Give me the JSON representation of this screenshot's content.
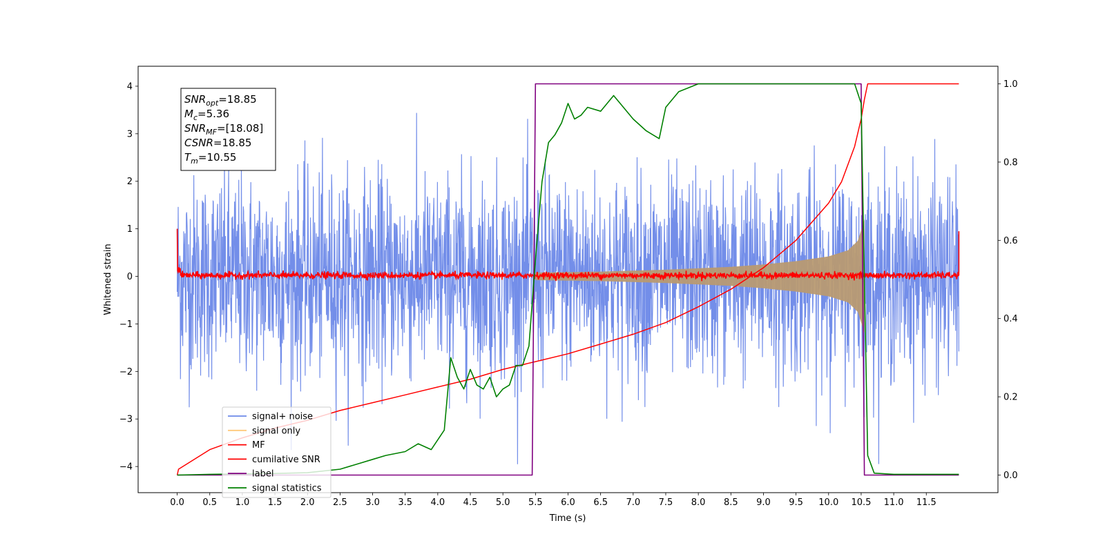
{
  "chart_data": {
    "type": "line",
    "xlabel": "Time (s)",
    "ylabel": "Whitened strain",
    "xlim": [
      -0.6,
      12.6
    ],
    "ylim": [
      -4.55,
      4.42
    ],
    "y2lim": [
      -0.045,
      1.045
    ],
    "x_ticks": [
      0.0,
      0.5,
      1.0,
      1.5,
      2.0,
      2.5,
      3.0,
      3.5,
      4.0,
      4.5,
      5.0,
      5.5,
      6.0,
      6.5,
      7.0,
      7.5,
      8.0,
      8.5,
      9.0,
      9.5,
      10.0,
      10.5,
      11.0,
      11.5
    ],
    "x_tick_labels": [
      "0.0",
      "0.5",
      "1.0",
      "1.5",
      "2.0",
      "2.5",
      "3.0",
      "3.5",
      "4.0",
      "4.5",
      "5.0",
      "5.5",
      "6.0",
      "6.5",
      "7.0",
      "7.5",
      "8.0",
      "8.5",
      "9.0",
      "9.5",
      "10.0",
      "10.5",
      "11.0",
      "11.5"
    ],
    "y_ticks": [
      -4,
      -3,
      -2,
      -1,
      0,
      1,
      2,
      3,
      4
    ],
    "y_tick_labels": [
      "−4",
      "−3",
      "−2",
      "−1",
      "0",
      "1",
      "2",
      "3",
      "4"
    ],
    "y2_ticks": [
      0.0,
      0.2,
      0.4,
      0.6,
      0.8,
      1.0
    ],
    "y2_tick_labels": [
      "0.0",
      "0.2",
      "0.4",
      "0.6",
      "0.8",
      "1.0"
    ],
    "info_box": [
      {
        "sym": "SNR",
        "sub": "opt",
        "value": "=18.85"
      },
      {
        "sym": "M",
        "sub": "c",
        "value": "=5.36"
      },
      {
        "sym": "SNR",
        "sub": "MF",
        "value": "=[18.08]"
      },
      {
        "sym": "CSNR",
        "sub": "",
        "value": "=18.85"
      },
      {
        "sym": "T",
        "sub": "m",
        "value": "=10.55"
      }
    ],
    "legend_position": "lower-left",
    "series": [
      {
        "name": "signal+ noise",
        "color": "#6b88e8",
        "axis": "left",
        "kind": "noise_band",
        "x_range": [
          0.0,
          12.0
        ],
        "typical_amplitude": 2.0,
        "peak_amplitude": 4.0
      },
      {
        "name": "signal only",
        "color": "#ffc87a",
        "axis": "left",
        "kind": "chirp_envelope",
        "x_range": [
          5.5,
          10.55
        ],
        "x": [
          5.5,
          6.0,
          6.5,
          7.0,
          7.5,
          8.0,
          8.5,
          9.0,
          9.5,
          10.0,
          10.3,
          10.45,
          10.55
        ],
        "envelope": [
          0.08,
          0.09,
          0.1,
          0.12,
          0.14,
          0.17,
          0.2,
          0.25,
          0.32,
          0.42,
          0.55,
          0.75,
          1.2
        ]
      },
      {
        "name": "MF",
        "color": "#ff0000",
        "axis": "left",
        "kind": "noise_band",
        "x_range": [
          0.0,
          12.0
        ],
        "typical_amplitude": 0.07,
        "edge_value": 1.0
      },
      {
        "name": "cumilative SNR",
        "color": "#ff0000",
        "axis": "right",
        "x": [
          0.0,
          0.02,
          0.5,
          1.0,
          1.5,
          2.0,
          2.5,
          3.0,
          3.5,
          4.0,
          4.5,
          5.0,
          5.5,
          6.0,
          6.5,
          7.0,
          7.5,
          8.0,
          8.5,
          9.0,
          9.5,
          10.0,
          10.2,
          10.4,
          10.5,
          10.55,
          10.6,
          12.0
        ],
        "y": [
          0.0,
          0.015,
          0.065,
          0.095,
          0.12,
          0.14,
          0.165,
          0.185,
          0.205,
          0.225,
          0.245,
          0.27,
          0.29,
          0.31,
          0.335,
          0.36,
          0.39,
          0.43,
          0.475,
          0.53,
          0.6,
          0.695,
          0.75,
          0.84,
          0.91,
          0.96,
          1.0,
          1.0
        ]
      },
      {
        "name": "label",
        "color": "#800080",
        "axis": "right",
        "x": [
          0.0,
          5.45,
          5.5,
          10.5,
          10.55,
          12.0
        ],
        "y": [
          0.0,
          0.0,
          1.0,
          1.0,
          0.0,
          0.0
        ]
      },
      {
        "name": "signal statistics",
        "color": "#008000",
        "axis": "right",
        "x": [
          0.0,
          0.5,
          1.0,
          1.5,
          2.0,
          2.5,
          2.8,
          3.0,
          3.2,
          3.5,
          3.7,
          3.9,
          4.1,
          4.2,
          4.3,
          4.4,
          4.5,
          4.6,
          4.7,
          4.8,
          4.9,
          5.0,
          5.1,
          5.2,
          5.3,
          5.4,
          5.5,
          5.6,
          5.7,
          5.8,
          5.9,
          6.0,
          6.1,
          6.2,
          6.3,
          6.5,
          6.7,
          6.8,
          7.0,
          7.2,
          7.4,
          7.5,
          7.7,
          8.0,
          8.5,
          9.0,
          9.5,
          10.0,
          10.4,
          10.5,
          10.55,
          10.6,
          10.7,
          11.0,
          12.0
        ],
        "y": [
          0.0,
          0.002,
          0.003,
          0.004,
          0.006,
          0.015,
          0.03,
          0.04,
          0.05,
          0.06,
          0.08,
          0.065,
          0.115,
          0.3,
          0.25,
          0.22,
          0.27,
          0.23,
          0.22,
          0.25,
          0.2,
          0.22,
          0.23,
          0.28,
          0.28,
          0.33,
          0.55,
          0.75,
          0.85,
          0.87,
          0.9,
          0.95,
          0.91,
          0.92,
          0.94,
          0.93,
          0.97,
          0.95,
          0.91,
          0.88,
          0.86,
          0.94,
          0.98,
          1.0,
          1.0,
          1.0,
          1.0,
          1.0,
          1.0,
          0.95,
          0.5,
          0.05,
          0.005,
          0.002,
          0.002
        ]
      }
    ]
  }
}
